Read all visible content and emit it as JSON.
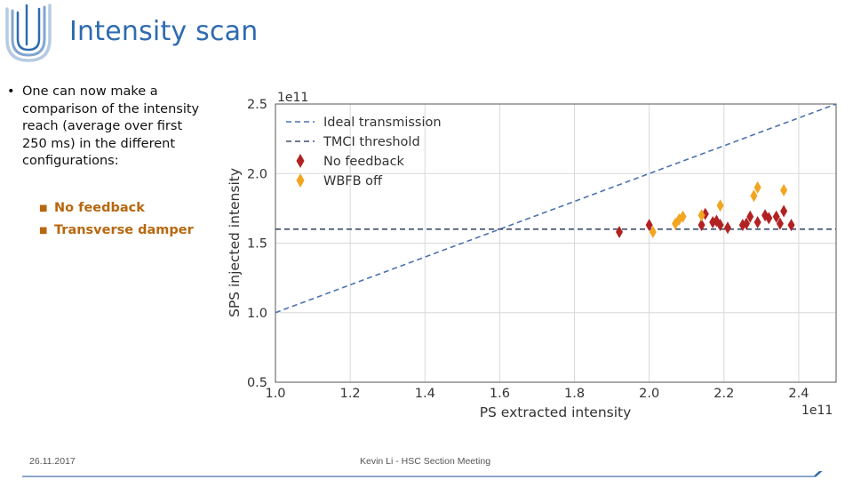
{
  "slide": {
    "title": "Intensity scan",
    "bullet": "One can now make a comparison of the intensity reach (average over first 250 ms) in the different configurations:",
    "sub_bullets": [
      "No feedback",
      "Transverse damper"
    ]
  },
  "footer": {
    "date": "26.11.2017",
    "presenter": "Kevin Li - HSC Section Meeting"
  },
  "colors": {
    "title": "#2e6bb0",
    "sub_bullet": "#b8670e",
    "no_feedback": "#b22222",
    "wbfb_off": "#f2a51e",
    "ideal": "#4c72b0",
    "tmci": "#3d4e6e"
  },
  "chart_data": {
    "type": "scatter",
    "xlabel": "PS extracted intensity",
    "ylabel": "SPS injected intensity",
    "x_scale_label": "1e11",
    "y_scale_label": "1e11",
    "xlim": [
      1.0,
      2.5
    ],
    "ylim": [
      0.5,
      2.5
    ],
    "xticks": [
      1.0,
      1.2,
      1.4,
      1.6,
      1.8,
      2.0,
      2.2,
      2.4
    ],
    "yticks": [
      0.5,
      1.0,
      1.5,
      2.0,
      2.5
    ],
    "xtick_labels": [
      "1.0",
      "1.2",
      "1.4",
      "1.6",
      "1.8",
      "2.0",
      "2.2",
      "2.4"
    ],
    "ytick_labels": [
      "0.5",
      "1.0",
      "1.5",
      "2.0",
      "2.5"
    ],
    "grid": true,
    "legend_position": "top-left",
    "lines": [
      {
        "name": "Ideal transmission",
        "style": "dashed",
        "points": [
          [
            1.0,
            1.0
          ],
          [
            2.5,
            2.5
          ]
        ]
      },
      {
        "name": "TMCI threshold",
        "style": "dashed",
        "points": [
          [
            1.0,
            1.6
          ],
          [
            2.5,
            1.6
          ]
        ]
      }
    ],
    "series": [
      {
        "name": "No feedback",
        "marker": "diamond",
        "points": [
          [
            1.92,
            1.58
          ],
          [
            2.0,
            1.63
          ],
          [
            2.14,
            1.63
          ],
          [
            2.15,
            1.71
          ],
          [
            2.17,
            1.65
          ],
          [
            2.18,
            1.66
          ],
          [
            2.19,
            1.63
          ],
          [
            2.21,
            1.61
          ],
          [
            2.25,
            1.63
          ],
          [
            2.26,
            1.64
          ],
          [
            2.27,
            1.69
          ],
          [
            2.29,
            1.65
          ],
          [
            2.31,
            1.7
          ],
          [
            2.32,
            1.68
          ],
          [
            2.34,
            1.69
          ],
          [
            2.35,
            1.64
          ],
          [
            2.36,
            1.73
          ],
          [
            2.38,
            1.63
          ]
        ]
      },
      {
        "name": "WBFB off",
        "marker": "diamond",
        "points": [
          [
            2.01,
            1.58
          ],
          [
            2.07,
            1.64
          ],
          [
            2.08,
            1.67
          ],
          [
            2.09,
            1.69
          ],
          [
            2.14,
            1.7
          ],
          [
            2.19,
            1.77
          ],
          [
            2.28,
            1.84
          ],
          [
            2.29,
            1.9
          ],
          [
            2.36,
            1.88
          ]
        ]
      }
    ]
  }
}
